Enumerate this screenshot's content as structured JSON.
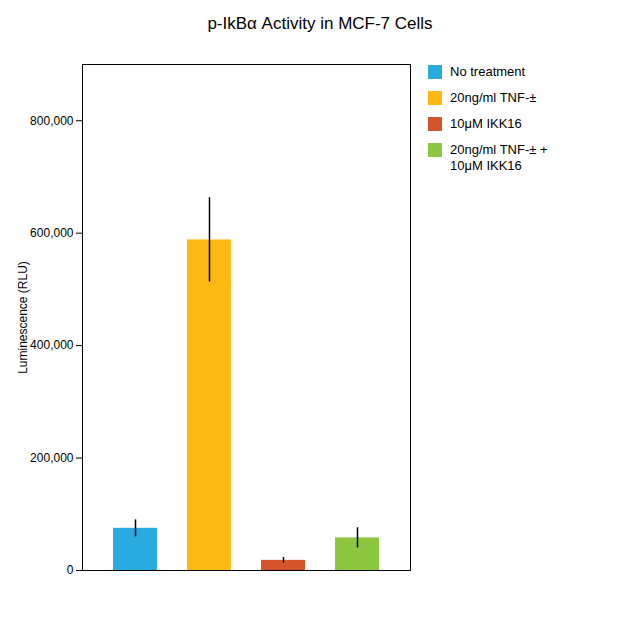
{
  "chart_data": {
    "type": "bar",
    "title": "p-IkBα Activity in MCF-7 Cells",
    "ylabel": "Luminescence (RLU)",
    "categories": [
      "No treatment",
      "20ng/ml TNF-±",
      "10μM IKK16",
      "20ng/ml TNF-± +\n10μM IKK16"
    ],
    "values": [
      75000,
      588000,
      18000,
      58000
    ],
    "errors": [
      15000,
      75000,
      5000,
      18000
    ],
    "colors": [
      "#29ABE2",
      "#FDB913",
      "#D4552A",
      "#8DC63F"
    ],
    "ylim": [
      0,
      900000
    ],
    "yticks": [
      0,
      {
        "value": 200000,
        "label": "200,000"
      },
      {
        "value": 400000,
        "label": "400,000"
      },
      {
        "value": 600000,
        "label": "600,000"
      },
      {
        "value": 800000,
        "label": "800,000"
      }
    ],
    "legend": "right",
    "tick_labels": "y",
    "grid": false
  }
}
